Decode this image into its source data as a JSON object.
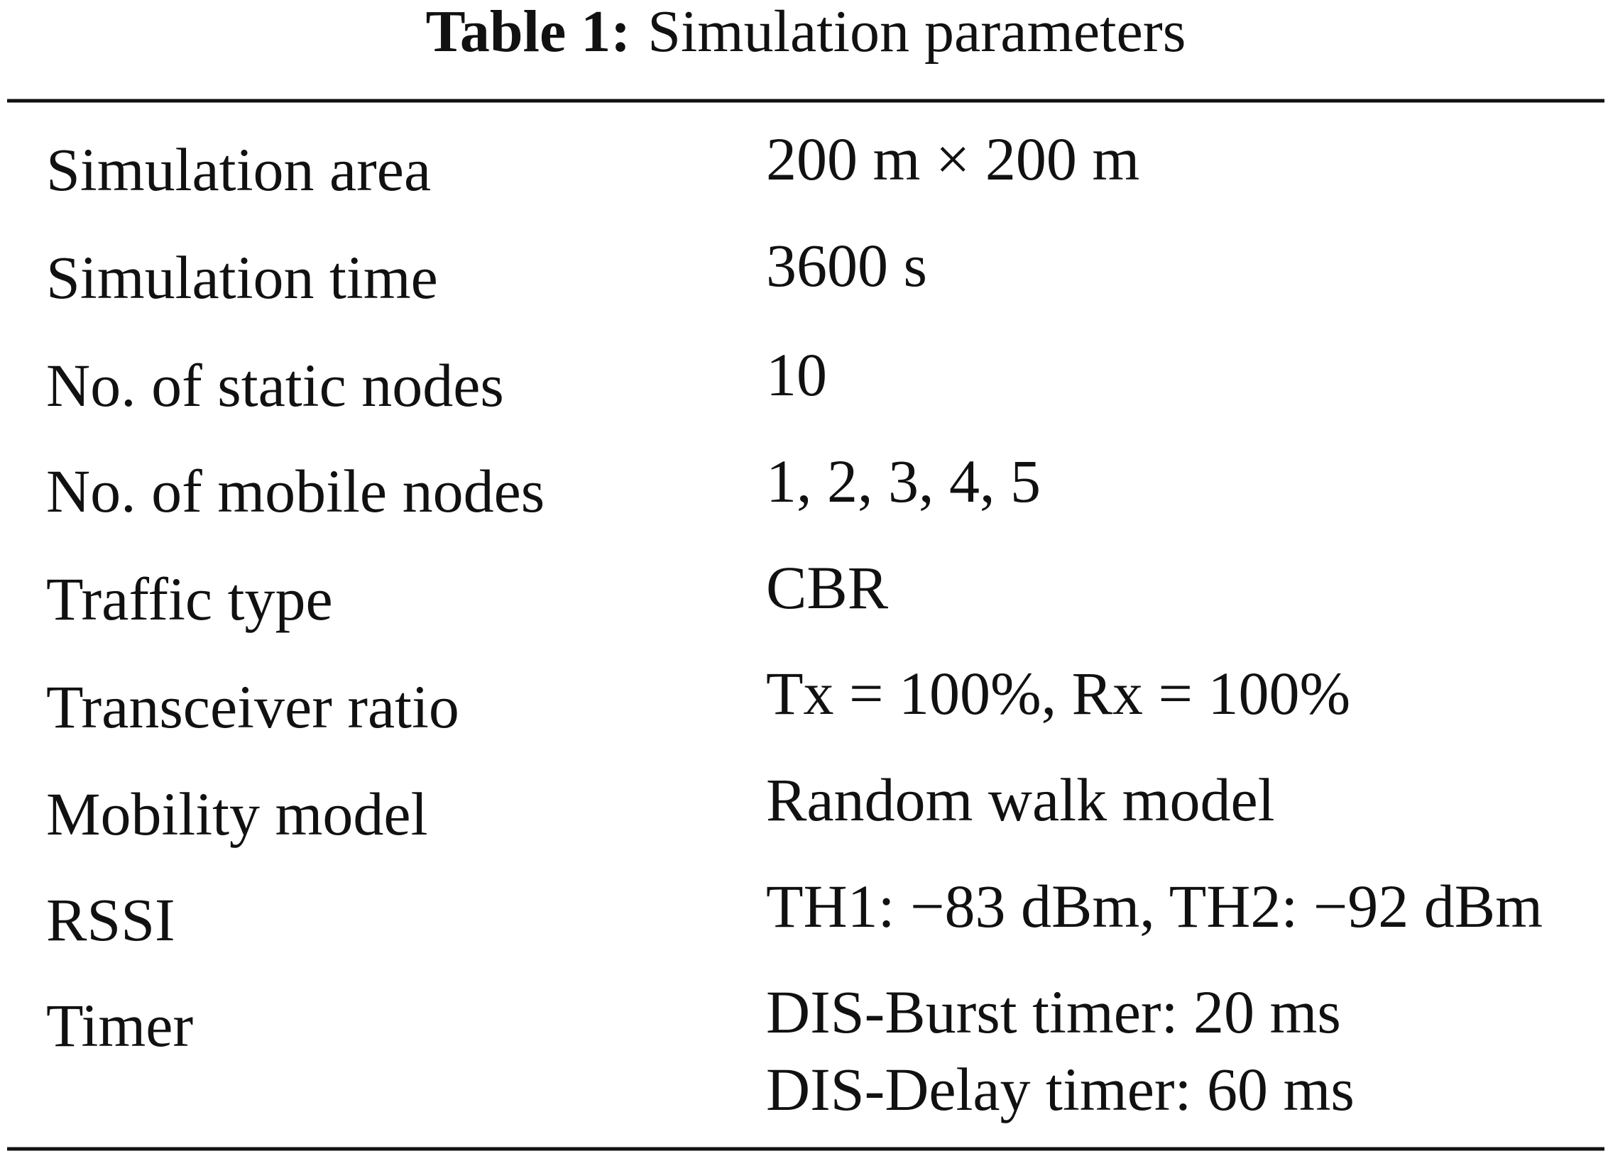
{
  "table": {
    "caption": {
      "label": "Table 1:",
      "title": "Simulation parameters"
    },
    "rows": [
      [
        "Simulation area",
        "200 m × 200 m"
      ],
      [
        "Simulation time",
        "3600 s"
      ],
      [
        "No. of static nodes",
        "10"
      ],
      [
        "No. of mobile nodes",
        "1, 2, 3, 4, 5"
      ],
      [
        "Traffic type",
        "CBR"
      ],
      [
        "Transceiver ratio",
        "Tx = 100%, Rx = 100%"
      ],
      [
        "Mobility model",
        "Random walk model"
      ],
      [
        "RSSI",
        "TH1: −83 dBm, TH2: −92 dBm"
      ],
      [
        "Timer",
        [
          "DIS-Burst timer: 20 ms",
          "DIS-Delay timer: 60 ms"
        ]
      ]
    ]
  }
}
